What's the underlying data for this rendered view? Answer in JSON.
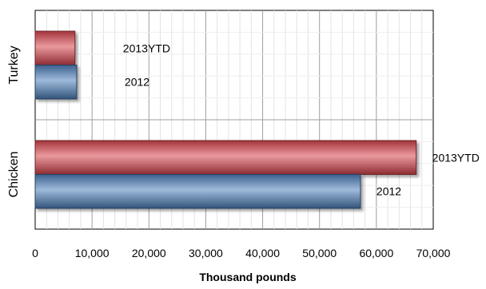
{
  "chart_data": {
    "type": "bar",
    "orientation": "horizontal",
    "categories": [
      "Turkey",
      "Chicken"
    ],
    "series": [
      {
        "name": "2013YTD",
        "values": [
          7000,
          67000
        ],
        "color": "#d9454f"
      },
      {
        "name": "2012",
        "values": [
          7300,
          57200
        ],
        "color": "#4f81bd"
      }
    ],
    "data_labels": [
      "2013YTD",
      "2012"
    ],
    "xlabel": "Thousand pounds",
    "ylabel": "",
    "xlim": [
      0,
      70000
    ],
    "x_ticks": [
      0,
      10000,
      20000,
      30000,
      40000,
      50000,
      60000,
      70000
    ],
    "x_tick_labels": [
      "0",
      "10,000",
      "20,000",
      "30,000",
      "40,000",
      "50,000",
      "60,000",
      "70,000"
    ],
    "grid": true,
    "legend": "none"
  }
}
